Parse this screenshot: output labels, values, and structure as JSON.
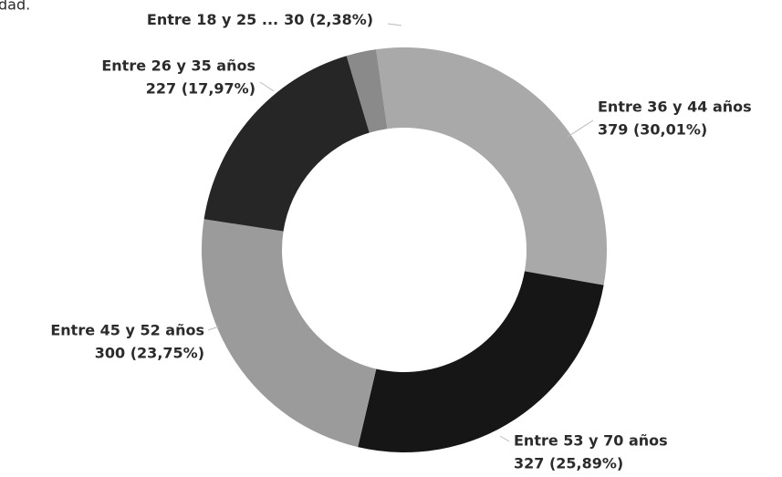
{
  "chart_data": {
    "type": "donut",
    "title": "dad.",
    "categories": [
      "Entre 36 y 44 años",
      "Entre 53 y 70 años",
      "Entre 45 y 52 años",
      "Entre 26 y 35 años",
      "Entre 18 y 25 ..."
    ],
    "values": [
      379,
      327,
      300,
      227,
      30
    ],
    "value_labels": [
      "379 (30,01%)",
      "327 (25,89%)",
      "300 (23,75%)",
      "227 (17,97%)",
      "30 (2,38%)"
    ],
    "colors": [
      "#a9a9a9",
      "#161616",
      "#9b9b9b",
      "#262626",
      "#8a8a8a"
    ]
  }
}
